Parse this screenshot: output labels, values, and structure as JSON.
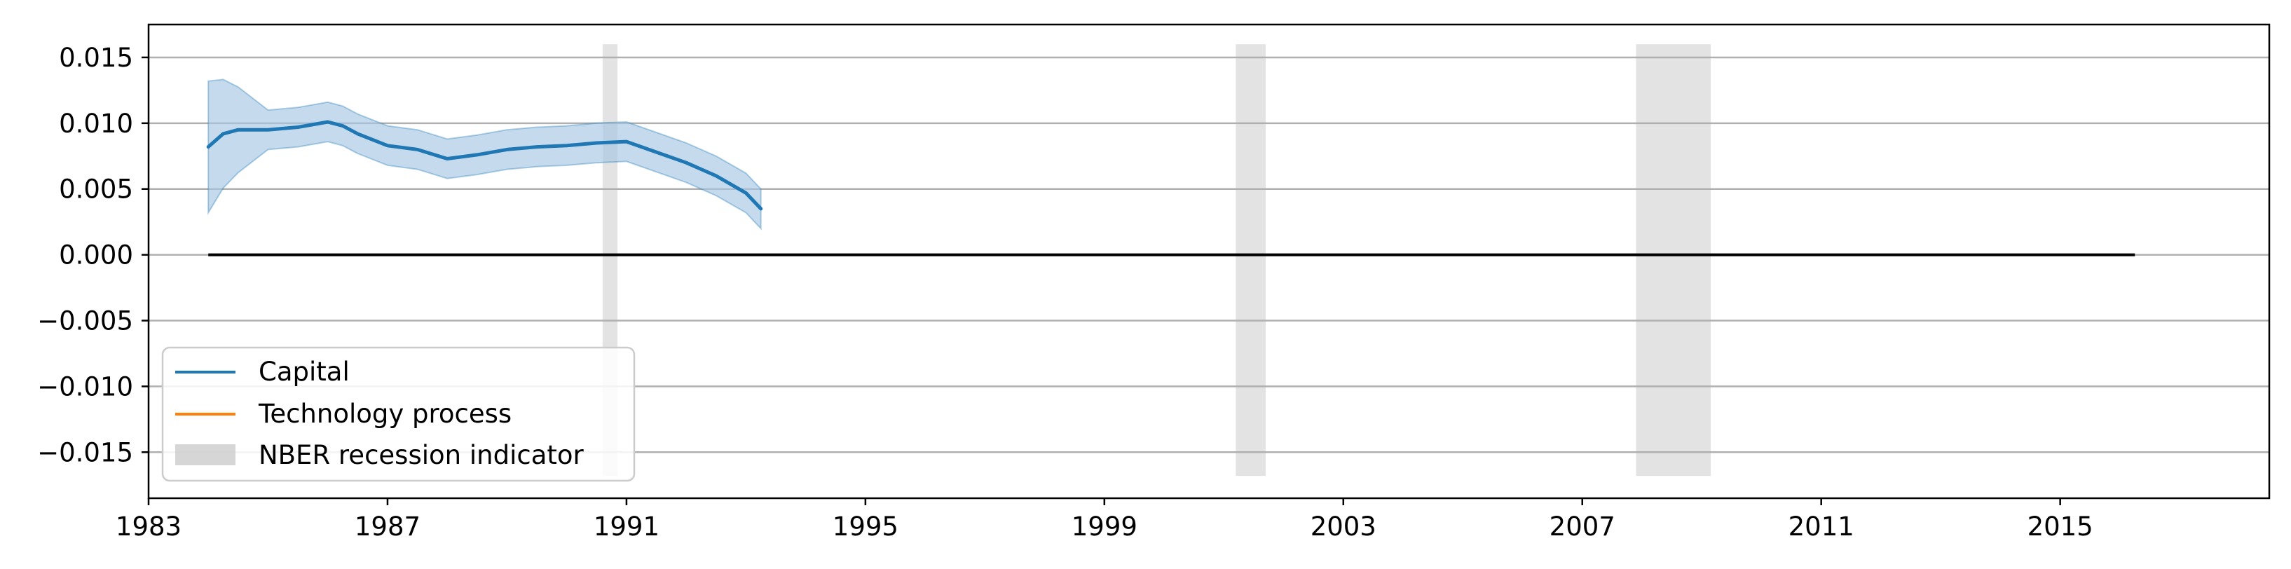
{
  "chart_data": {
    "type": "line",
    "title": "",
    "xlabel": "",
    "ylabel": "",
    "xlim": [
      1983,
      2018.5
    ],
    "ylim": [
      -0.0185,
      0.0175
    ],
    "xticks": [
      1983,
      1987,
      1991,
      1995,
      1999,
      2003,
      2007,
      2011,
      2015
    ],
    "xtick_labels": [
      "1983",
      "1987",
      "1991",
      "1995",
      "1999",
      "2003",
      "2007",
      "2011",
      "2015"
    ],
    "yticks": [
      0.015,
      0.01,
      0.005,
      0.0,
      -0.005,
      -0.01,
      -0.015
    ],
    "ytick_labels": [
      "0.015",
      "0.010",
      "0.005",
      "0.000",
      "−0.005",
      "−0.010",
      "−0.015"
    ],
    "grid": "horizontal",
    "zero_line": 0.0,
    "legend_position": "lower-left",
    "recessions": [
      [
        1990.6,
        1990.85
      ],
      [
        2001.2,
        2001.7
      ],
      [
        2007.9,
        2009.15
      ]
    ],
    "series": [
      {
        "name": "Capital",
        "color": "#1f77b4",
        "band_color": "#a6c8e4",
        "band_halfwidth": [
          [
            1984.0,
            0.005
          ],
          [
            1985.0,
            0.0015
          ],
          [
            2020,
            0.0015
          ]
        ],
        "points": [
          [
            1984.0,
            0.0082
          ],
          [
            1984.25,
            0.0092
          ],
          [
            1984.5,
            0.0095
          ],
          [
            1985.0,
            0.0095
          ],
          [
            1985.5,
            0.0097
          ],
          [
            1986.0,
            0.0101
          ],
          [
            1986.25,
            0.0098
          ],
          [
            1986.5,
            0.0092
          ],
          [
            1987.0,
            0.0083
          ],
          [
            1987.5,
            0.008
          ],
          [
            1988.0,
            0.0073
          ],
          [
            1988.5,
            0.0076
          ],
          [
            1989.0,
            0.008
          ],
          [
            1989.5,
            0.0082
          ],
          [
            1990.0,
            0.0083
          ],
          [
            1990.5,
            0.0085
          ],
          [
            1991.0,
            0.0086
          ],
          [
            1991.5,
            0.0078
          ],
          [
            1992.0,
            0.007
          ],
          [
            1992.5,
            0.006
          ],
          [
            1993.0,
            0.0047
          ],
          [
            1993.25,
            0.0035
          ],
          [
            1990.0,
            0.0
          ],
          [
            1990.0,
            0.0
          ]
        ]
      },
      {
        "name": "Technology process",
        "color": "#ff7f0e",
        "band_color": "#ffd0a8",
        "band_halfwidth": [
          [
            1984.0,
            0.0022
          ],
          [
            2020,
            0.0022
          ]
        ],
        "points": []
      }
    ],
    "legend": [
      {
        "label": "Capital",
        "kind": "line",
        "color": "#1f77b4"
      },
      {
        "label": "Technology process",
        "kind": "line",
        "color": "#ff7f0e"
      },
      {
        "label": "NBER recession indicator",
        "kind": "patch",
        "color": "#cccccc"
      }
    ]
  }
}
